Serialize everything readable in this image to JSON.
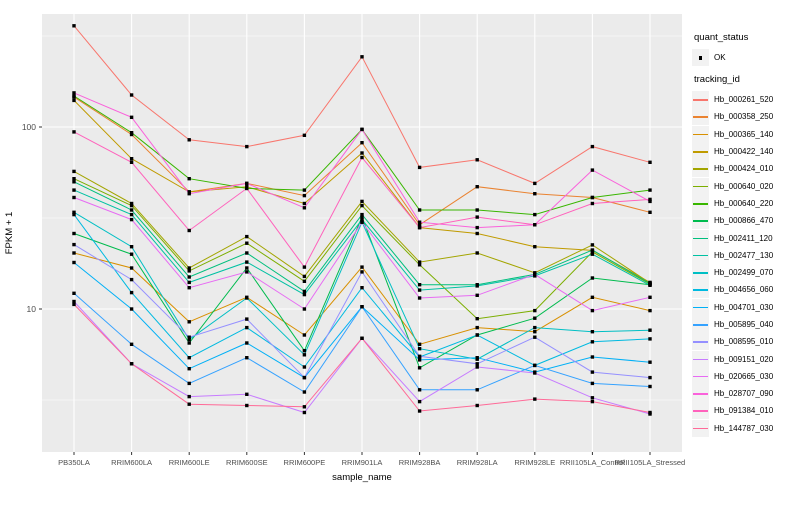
{
  "chart_data": {
    "type": "line",
    "title": "",
    "xlabel": "sample_name",
    "ylabel": "FPKM + 1",
    "y_scale": "log10",
    "y_tick_labels": [
      "100",
      "10"
    ],
    "y_tick_values": [
      100,
      10
    ],
    "y_minor_tick_values": [
      316.2,
      31.62,
      3.162
    ],
    "ylim": [
      1.6,
      420
    ],
    "grid": true,
    "panel_color": "#EBEBEB",
    "gridline_color": "#FFFFFF",
    "axis_text_color": "#4D4D4D",
    "point_marker": "filled-square",
    "point_color": "#000000",
    "legend_position": "right",
    "x_categories": [
      "PB350LA",
      "RRIM600LA",
      "RRIM600LE",
      "RRIM600SE",
      "RRIM600PE",
      "RRIM901LA",
      "RRIM928BA",
      "RRIM928LA",
      "RRIM928LE",
      "RRII105LA_Control",
      "RRII105LA_Stressed"
    ],
    "legend_quant": {
      "title": "quant_status",
      "items": [
        "OK"
      ]
    },
    "legend_series_title": "tracking_id",
    "series": [
      {
        "name": "Hb_000261_520",
        "color": "#F8766D",
        "values": [
          360,
          150,
          85,
          78,
          90,
          243,
          60,
          66,
          49,
          78,
          64
        ]
      },
      {
        "name": "Hb_000358_250",
        "color": "#EA8331",
        "values": [
          146,
          91,
          44,
          49,
          42,
          82,
          29,
          47,
          43,
          41,
          34
        ]
      },
      {
        "name": "Hb_000365_140",
        "color": "#D89000",
        "values": [
          20.3,
          16.8,
          8.5,
          11.6,
          7.2,
          17,
          6.4,
          7.9,
          7.5,
          11.6,
          9.8
        ]
      },
      {
        "name": "Hb_000422_140",
        "color": "#C09B00",
        "values": [
          140,
          67,
          44,
          47,
          38,
          72,
          28,
          26,
          22,
          21,
          14
        ]
      },
      {
        "name": "Hb_000424_010",
        "color": "#A3A500",
        "values": [
          57,
          38,
          16.8,
          25,
          15.1,
          39,
          18.1,
          20.3,
          15.8,
          22.5,
          13.9
        ]
      },
      {
        "name": "Hb_000640_020",
        "color": "#7CAE00",
        "values": [
          52,
          37,
          16.2,
          23,
          14.2,
          37,
          17.5,
          8.85,
          9.8,
          20.6,
          13.7
        ]
      },
      {
        "name": "Hb_000640_220",
        "color": "#39B600",
        "values": [
          148,
          93,
          52,
          46,
          45,
          97,
          35,
          35,
          33,
          41,
          45
        ]
      },
      {
        "name": "Hb_000866_470",
        "color": "#00BB4E",
        "values": [
          26,
          20,
          6.5,
          16.8,
          5.9,
          32,
          4.75,
          7.2,
          8.9,
          14.8,
          13.6
        ]
      },
      {
        "name": "Hb_002411_120",
        "color": "#00BF7D",
        "values": [
          50,
          35,
          15,
          20.3,
          12.5,
          33,
          13.6,
          13.6,
          15.5,
          21.1,
          13.8
        ]
      },
      {
        "name": "Hb_002477_130",
        "color": "#00C1A3",
        "values": [
          45,
          33,
          14,
          18.1,
          12,
          31,
          12.7,
          13.4,
          15.2,
          20,
          13.5
        ]
      },
      {
        "name": "Hb_002499_070",
        "color": "#00BFC4",
        "values": [
          34,
          22,
          6.8,
          11.5,
          5.6,
          30,
          6.05,
          5.3,
          7.9,
          7.5,
          7.65
        ]
      },
      {
        "name": "Hb_004656_060",
        "color": "#00BAE0",
        "values": [
          33,
          12.3,
          5.4,
          7.9,
          4.8,
          13.1,
          5.45,
          7.2,
          4.9,
          6.6,
          6.85
        ]
      },
      {
        "name": "Hb_004701_030",
        "color": "#00B0F6",
        "values": [
          18,
          10,
          4.7,
          6.5,
          4.2,
          10.3,
          5.25,
          5.4,
          4.5,
          5.45,
          5.1
        ]
      },
      {
        "name": "Hb_005895_040",
        "color": "#35A2FF",
        "values": [
          12.2,
          6.4,
          3.9,
          5.4,
          3.5,
          10.3,
          3.6,
          3.6,
          4.9,
          3.9,
          3.75
        ]
      },
      {
        "name": "Hb_008595_010",
        "color": "#9590FF",
        "values": [
          22.6,
          14.5,
          7.0,
          8.8,
          4.2,
          16,
          5.5,
          5.0,
          7.0,
          4.5,
          4.2
        ]
      },
      {
        "name": "Hb_009151_020",
        "color": "#C77CFF",
        "values": [
          11,
          5.0,
          3.3,
          3.4,
          2.7,
          6.9,
          3.1,
          4.8,
          4.45,
          3.25,
          2.65
        ]
      },
      {
        "name": "Hb_020665_030",
        "color": "#E76BF3",
        "values": [
          41,
          31,
          13.1,
          16,
          10,
          30,
          11.5,
          11.9,
          15.5,
          9.8,
          11.6
        ]
      },
      {
        "name": "Hb_028707_090",
        "color": "#FA62DB",
        "values": [
          154,
          113,
          43,
          49,
          36,
          97,
          30,
          28,
          29,
          58,
          39
        ]
      },
      {
        "name": "Hb_091384_010",
        "color": "#FF62BC",
        "values": [
          94,
          64,
          27,
          46,
          17,
          68,
          28,
          32,
          29,
          38,
          40
        ]
      },
      {
        "name": "Hb_144787_030",
        "color": "#FF6A98",
        "values": [
          10.6,
          5.0,
          3.0,
          2.95,
          2.9,
          6.9,
          2.75,
          2.95,
          3.2,
          3.1,
          2.7
        ]
      }
    ]
  }
}
